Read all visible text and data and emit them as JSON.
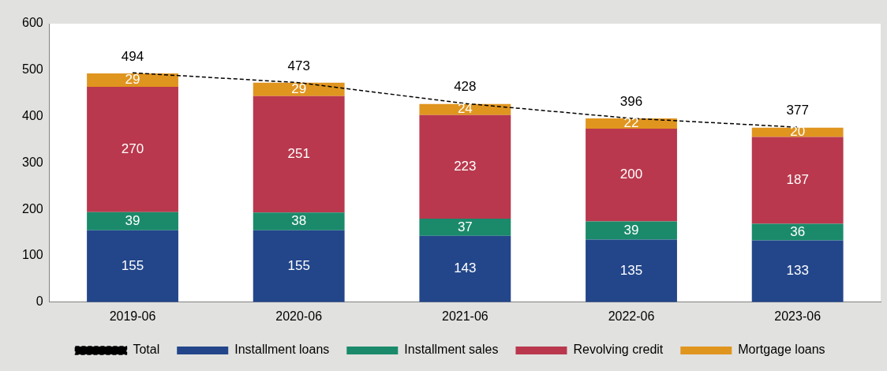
{
  "chart_data": {
    "type": "bar",
    "stacked": true,
    "categories": [
      "2019-06",
      "2020-06",
      "2021-06",
      "2022-06",
      "2023-06"
    ],
    "series": [
      {
        "name": "Installment loans",
        "color": "#23468a",
        "values": [
          155,
          155,
          143,
          135,
          133
        ]
      },
      {
        "name": "Installment sales",
        "color": "#1a8a6a",
        "values": [
          39,
          38,
          37,
          39,
          36
        ]
      },
      {
        "name": "Revolving credit",
        "color": "#b9384d",
        "values": [
          270,
          251,
          223,
          200,
          187
        ]
      },
      {
        "name": "Mortgage loans",
        "color": "#e0951f",
        "values": [
          29,
          29,
          24,
          22,
          20
        ]
      },
      {
        "name": "Total",
        "type": "line",
        "color": "#000000",
        "line_style": "dashed",
        "marker": "none",
        "values": [
          494,
          473,
          428,
          396,
          377
        ]
      }
    ],
    "ylim": [
      0,
      600
    ],
    "yticks": [
      0,
      100,
      200,
      300,
      400,
      500,
      600
    ],
    "grid": false,
    "legend": "bottom",
    "data_labels": true
  }
}
